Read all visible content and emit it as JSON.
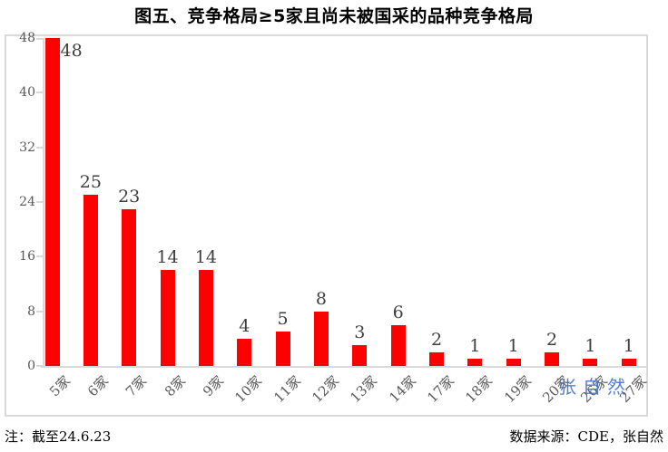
{
  "title": "图五、竞争格局≥5家且尚未被国采的品种竞争格局",
  "watermark": "张自然",
  "footer": {
    "note": "注：截至24.6.23",
    "source": "数据来源：CDE，张自然"
  },
  "colors": {
    "bar": "#ff0000",
    "axis": "#d9d9d9",
    "tick_label": "#595959",
    "data_label": "#404040",
    "watermark": "#4472c4"
  },
  "chart_data": {
    "type": "bar",
    "title": "图五、竞争格局≥5家且尚未被国采的品种竞争格局",
    "categories": [
      "5家",
      "6家",
      "7家",
      "8家",
      "9家",
      "10家",
      "11家",
      "12家",
      "13家",
      "14家",
      "17家",
      "18家",
      "19家",
      "20家",
      "26家",
      "27家"
    ],
    "values": [
      48,
      25,
      23,
      14,
      14,
      4,
      5,
      8,
      3,
      6,
      2,
      1,
      1,
      2,
      1,
      1
    ],
    "data_labels": [
      48,
      25,
      23,
      14,
      14,
      4,
      5,
      8,
      3,
      6,
      2,
      1,
      1,
      2,
      1,
      1
    ],
    "xlabel": "",
    "ylabel": "",
    "ylim": [
      0,
      48
    ],
    "yticks": [
      0,
      8,
      16,
      24,
      32,
      40,
      48
    ],
    "grid": false,
    "legend": false,
    "bar_color": "#ff0000"
  }
}
